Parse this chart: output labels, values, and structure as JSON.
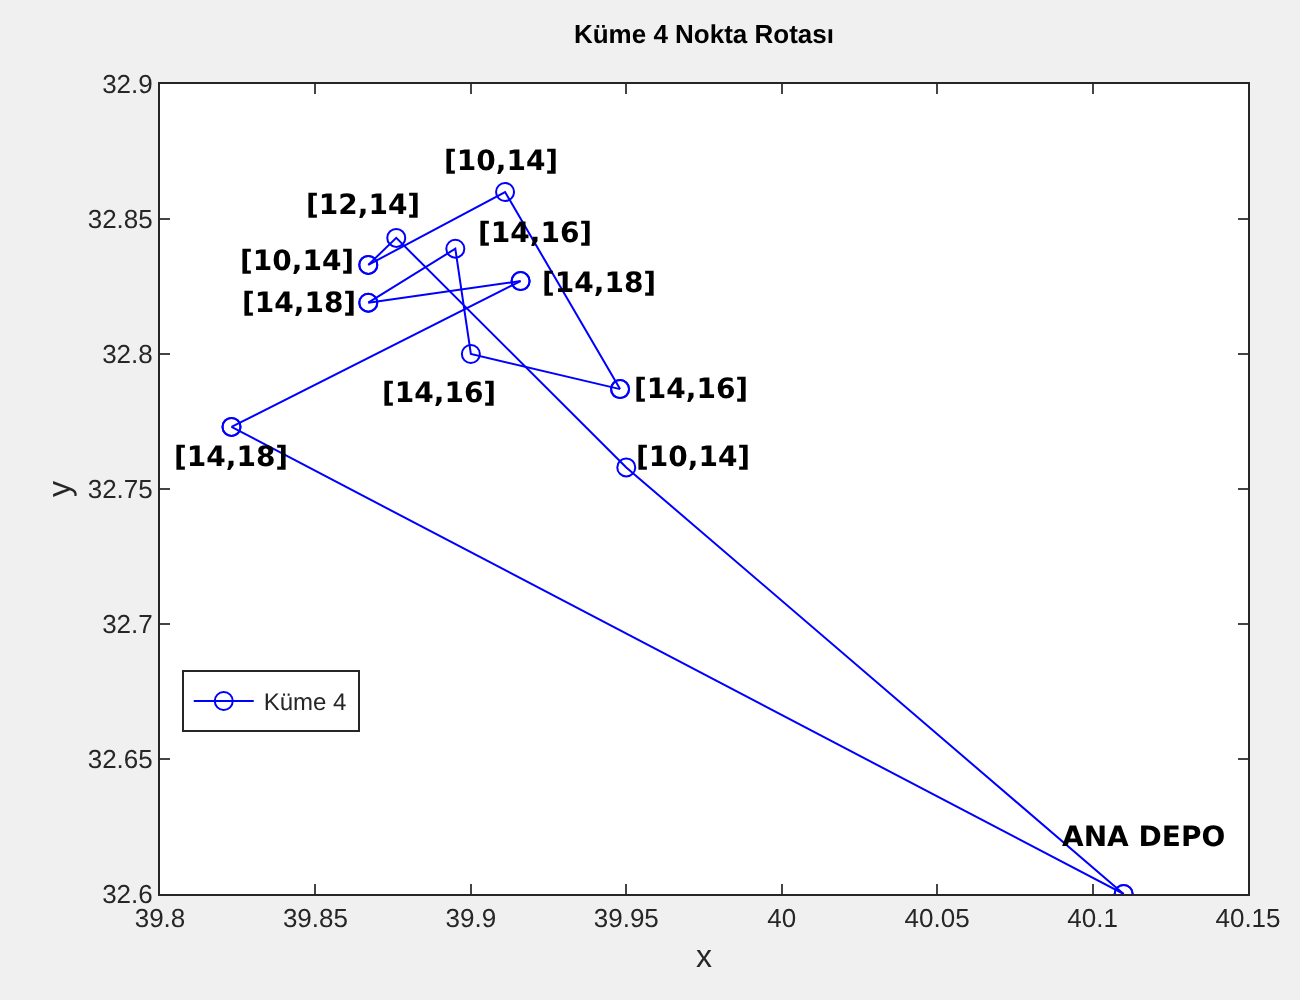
{
  "chart_data": {
    "type": "line",
    "title": "Küme 4 Nokta Rotası",
    "xlabel": "x",
    "ylabel": "y",
    "series": [
      {
        "name": "Küme 4",
        "color": "#0000ff",
        "x": [
          40.11,
          39.823
        ],
        "values": [
          32.6,
          32.773
        ]
      },
      {
        "color": "#0000ff",
        "x": [
          39.823,
          39.916
        ],
        "values": [
          32.773,
          32.827
        ]
      },
      {
        "color": "#0000ff",
        "x": [
          39.916,
          39.867
        ],
        "values": [
          32.827,
          32.819
        ]
      },
      {
        "color": "#0000ff",
        "x": [
          39.867,
          39.895,
          39.9,
          39.948
        ],
        "values": [
          32.819,
          32.839,
          32.8,
          32.787
        ]
      },
      {
        "color": "#0000ff",
        "x": [
          39.948,
          39.911,
          39.867
        ],
        "values": [
          32.787,
          32.86,
          32.833
        ]
      },
      {
        "color": "#0000ff",
        "x": [
          39.867,
          39.876,
          39.95,
          40.11
        ],
        "values": [
          32.833,
          32.843,
          32.758,
          32.6
        ]
      }
    ],
    "annotations": [
      {
        "text": "ANA DEPO",
        "x": 40.11,
        "y": 32.6
      },
      {
        "text": "[14,18]",
        "x": 39.823,
        "y": 32.773
      },
      {
        "text": "[14,18]",
        "x": 39.916,
        "y": 32.827
      },
      {
        "text": "[14,18]",
        "x": 39.867,
        "y": 32.819
      },
      {
        "text": "[14,16]",
        "x": 39.895,
        "y": 32.839
      },
      {
        "text": "[14,16]",
        "x": 39.9,
        "y": 32.8
      },
      {
        "text": "[14,16]",
        "x": 39.948,
        "y": 32.787
      },
      {
        "text": "[10,14]",
        "x": 39.911,
        "y": 32.86
      },
      {
        "text": "[10,14]",
        "x": 39.867,
        "y": 32.833
      },
      {
        "text": "[12,14]",
        "x": 39.876,
        "y": 32.843
      },
      {
        "text": "[10,14]",
        "x": 39.95,
        "y": 32.758
      }
    ],
    "xlim": [
      39.8,
      40.15
    ],
    "xticks": [
      39.8,
      39.85,
      39.9,
      39.95,
      40,
      40.05,
      40.1,
      40.15
    ],
    "ylim": [
      32.6,
      32.9
    ],
    "yticks": [
      32.6,
      32.65,
      32.7,
      32.75,
      32.8,
      32.85,
      32.9
    ],
    "marker": "circle",
    "line_style": "solid",
    "legend": "bottom left",
    "grid": false
  }
}
